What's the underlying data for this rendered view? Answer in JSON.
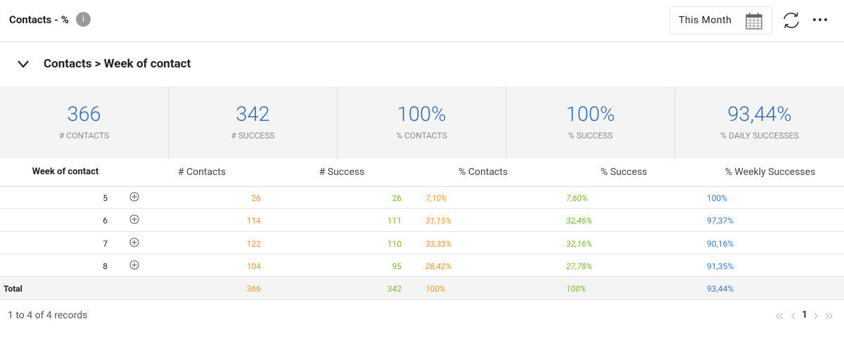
{
  "header": {
    "title": "Contacts - %",
    "info_icon": "i",
    "date_range": "This Month"
  },
  "section": {
    "title": "Contacts > Week of contact"
  },
  "kpis": [
    {
      "value": "366",
      "label": "# CONTACTS"
    },
    {
      "value": "342",
      "label": "# SUCCESS"
    },
    {
      "value": "100%",
      "label": "% CONTACTS"
    },
    {
      "value": "100%",
      "label": "% SUCCESS"
    },
    {
      "value": "93,44%",
      "label": "% DAILY SUCCESSES"
    }
  ],
  "table": {
    "columns": [
      "Week of contact",
      "# Contacts",
      "# Success",
      "% Contacts",
      "% Success",
      "% Weekly Successes"
    ],
    "rows": [
      [
        "5",
        "26",
        "26",
        "7,10%",
        "7,60%",
        "100%"
      ],
      [
        "6",
        "114",
        "111",
        "31,15%",
        "32,46%",
        "97,37%"
      ],
      [
        "7",
        "122",
        "110",
        "33,33%",
        "32,16%",
        "90,16%"
      ],
      [
        "8",
        "104",
        "95",
        "28,42%",
        "27,78%",
        "91,35%"
      ]
    ],
    "total": [
      "Total",
      "366",
      "342",
      "100%",
      "100%",
      "93,44%"
    ]
  },
  "footer": {
    "records": "1 to 4 of 4 records",
    "page": "1"
  }
}
